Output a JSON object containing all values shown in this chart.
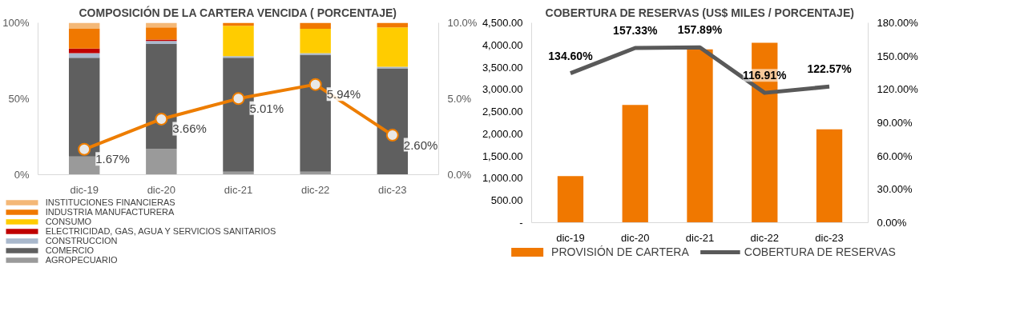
{
  "chart_data": [
    {
      "type": "bar",
      "title": "COMPOSICIÓN DE LA CARTERA VENCIDA ( PORCENTAJE)",
      "categories": [
        "dic-19",
        "dic-20",
        "dic-21",
        "dic-22",
        "dic-23"
      ],
      "stacked": true,
      "marker": "circle",
      "legend": "bottom",
      "ylim": [
        0,
        100
      ],
      "yticks": [
        {
          "value": 0,
          "label": "0%"
        },
        {
          "value": 50,
          "label": "50%"
        },
        {
          "value": 100,
          "label": "100%"
        }
      ],
      "y2lim": [
        0,
        10
      ],
      "y2ticks": [
        {
          "value": 0,
          "label": "0.0%"
        },
        {
          "value": 5,
          "label": "5.0%"
        },
        {
          "value": 10,
          "label": "10.0%"
        }
      ],
      "series": [
        {
          "name": "AGROPECUARIO",
          "color": "#9a9a9a",
          "values": [
            12,
            17,
            2,
            2,
            0
          ]
        },
        {
          "name": "COMERCIO",
          "color": "#5f5f5f",
          "values": [
            65,
            69,
            75,
            77,
            70
          ]
        },
        {
          "name": "CONSTRUCCION",
          "color": "#a9b8cc",
          "values": [
            3,
            2,
            1,
            1,
            1
          ]
        },
        {
          "name": "ELECTRICIDAD, GAS, AGUA Y SERVICIOS SANITARIOS",
          "color": "#c00000",
          "values": [
            3,
            1,
            0,
            0,
            0
          ]
        },
        {
          "name": "CONSUMO",
          "color": "#ffcc00",
          "values": [
            0,
            0,
            20,
            16,
            26
          ]
        },
        {
          "name": "INDUSTRIA MANUFACTURERA",
          "color": "#f07800",
          "values": [
            13,
            8,
            2,
            4,
            3
          ]
        },
        {
          "name": "INSTITUCIONES FINANCIERAS",
          "color": "#f4b877",
          "values": [
            4,
            3,
            0,
            0,
            0
          ]
        },
        {
          "type": "line",
          "axis": "y2",
          "color": "#ed7d00",
          "values": [
            1.67,
            3.66,
            5.01,
            5.94,
            2.6
          ],
          "value_labels": [
            "1.67%",
            "3.66%",
            "5.01%",
            "5.94%",
            "2.60%"
          ]
        }
      ]
    },
    {
      "type": "bar",
      "title": "COBERTURA DE RESERVAS (US$ MILES / PORCENTAJE)",
      "categories": [
        "dic-19",
        "dic-20",
        "dic-21",
        "dic-22",
        "dic-23"
      ],
      "legend": "bottom",
      "ylim": [
        0,
        4500
      ],
      "yticks": [
        {
          "value": 0,
          "label": "-"
        },
        {
          "value": 500,
          "label": "500.00"
        },
        {
          "value": 1000,
          "label": "1,000.00"
        },
        {
          "value": 1500,
          "label": "1,500.00"
        },
        {
          "value": 2000,
          "label": "2,000.00"
        },
        {
          "value": 2500,
          "label": "2,500.00"
        },
        {
          "value": 3000,
          "label": "3,000.00"
        },
        {
          "value": 3500,
          "label": "3,500.00"
        },
        {
          "value": 4000,
          "label": "4,000.00"
        },
        {
          "value": 4500,
          "label": "4,500.00"
        }
      ],
      "y2lim": [
        0,
        180
      ],
      "y2ticks": [
        {
          "value": 0,
          "label": "0.00%"
        },
        {
          "value": 30,
          "label": "30.00%"
        },
        {
          "value": 60,
          "label": "60.00%"
        },
        {
          "value": 90,
          "label": "90.00%"
        },
        {
          "value": 120,
          "label": "120.00%"
        },
        {
          "value": 150,
          "label": "150.00%"
        },
        {
          "value": 180,
          "label": "180.00%"
        }
      ],
      "series": [
        {
          "name": "PROVISIÓN DE CARTERA",
          "color": "#f07800",
          "values": [
            1050,
            2650,
            3900,
            4050,
            2100
          ]
        },
        {
          "name": "COBERTURA DE RESERVAS",
          "type": "line",
          "axis": "y2",
          "color": "#595959",
          "values": [
            134.6,
            157.33,
            157.89,
            116.91,
            122.57
          ],
          "value_labels": [
            "134.60%",
            "157.33%",
            "157.89%",
            "116.91%",
            "122.57%"
          ]
        }
      ]
    }
  ]
}
